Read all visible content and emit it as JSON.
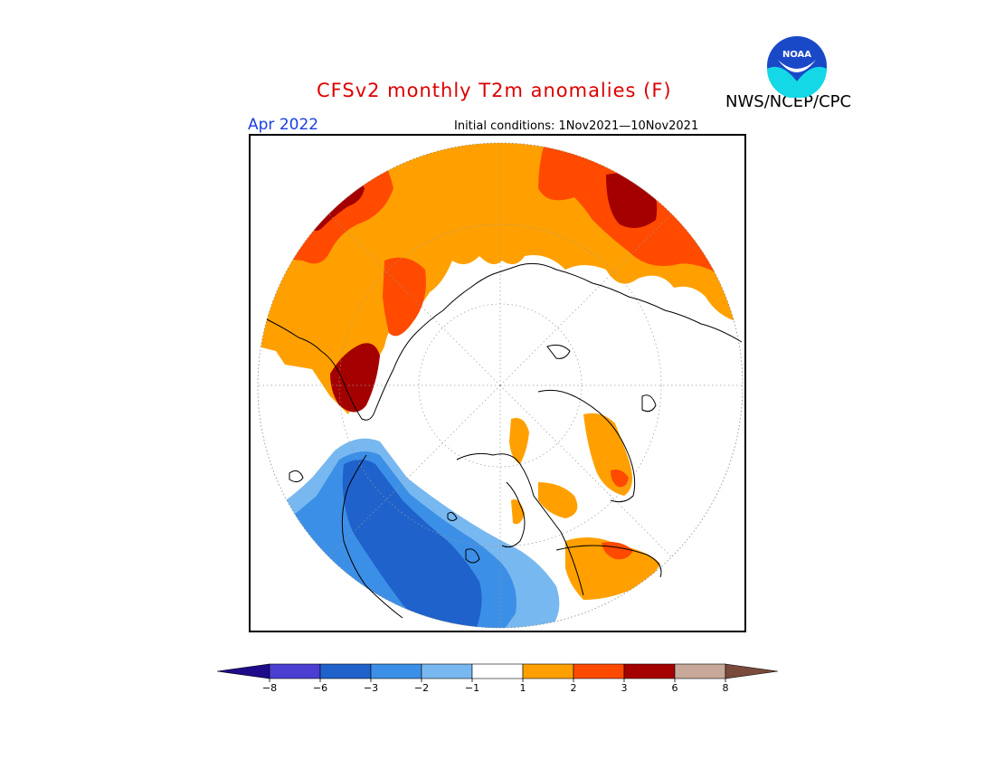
{
  "header": {
    "title": "CFSv2 monthly T2m anomalies (F)",
    "valid_month": "Apr 2022",
    "initial_conditions": "Initial conditions: 1Nov2021—10Nov2021",
    "agency": "NWS/NCEP/CPC",
    "logo_text": "NOAA"
  },
  "legend": {
    "tick_labels": [
      "−8",
      "−6",
      "−3",
      "−2",
      "−1",
      "1",
      "2",
      "3",
      "6",
      "8"
    ],
    "colors": {
      "below_min": "#1e0b8c",
      "m8_m6": "#4a3fd0",
      "m6_m3": "#1f62cc",
      "m3_m2": "#3c8fe6",
      "m2_m1": "#78b8f0",
      "m1_1": "#ffffff",
      "p1_p2": "#ffa000",
      "p2_p3": "#ff4a00",
      "p3_p6": "#a50000",
      "p6_p8": "#c8a898",
      "above_max": "#7a4a3a"
    }
  },
  "colors": {
    "title": "#dd0000",
    "month": "#1a3fe0",
    "frame": "#000000",
    "coast": "#000000"
  }
}
